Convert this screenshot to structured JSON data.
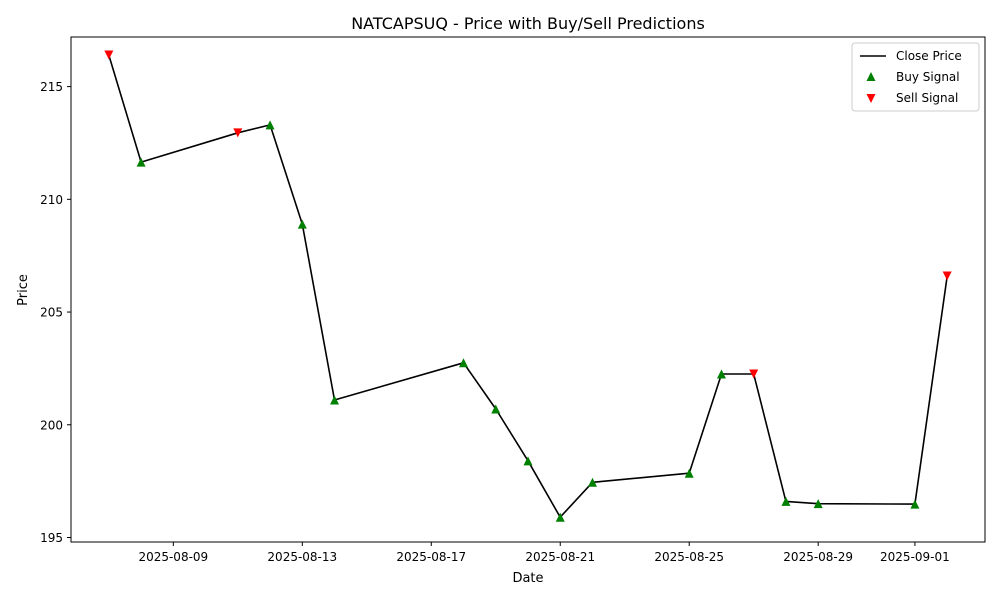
{
  "chart_data": {
    "type": "line",
    "title": "NATCAPSUQ - Price with Buy/Sell Predictions",
    "xlabel": "Date",
    "ylabel": "Price",
    "xlim": [
      "2025-08-05T19:50",
      "2025-09-03T04:10"
    ],
    "ylim": [
      194.8,
      217.2
    ],
    "x_ticks": [
      "2025-08-09",
      "2025-08-13",
      "2025-08-17",
      "2025-08-21",
      "2025-08-25",
      "2025-08-29",
      "2025-09-01"
    ],
    "y_ticks": [
      195,
      200,
      205,
      210,
      215
    ],
    "grid": false,
    "legend_position": "upper-right",
    "legend": [
      "Close Price",
      "Buy Signal",
      "Sell Signal"
    ],
    "colors": {
      "line": "#000000",
      "buy": "#008000",
      "sell": "#ff0000"
    },
    "series": [
      {
        "name": "Close Price",
        "x": [
          "2025-08-07",
          "2025-08-08",
          "2025-08-11",
          "2025-08-12",
          "2025-08-13",
          "2025-08-14",
          "2025-08-18",
          "2025-08-19",
          "2025-08-20",
          "2025-08-21",
          "2025-08-22",
          "2025-08-25",
          "2025-08-26",
          "2025-08-27",
          "2025-08-28",
          "2025-08-29",
          "2025-09-01",
          "2025-09-02"
        ],
        "y": [
          216.4,
          211.65,
          212.95,
          213.3,
          208.9,
          201.1,
          202.75,
          200.7,
          198.4,
          195.9,
          197.45,
          197.85,
          202.25,
          202.25,
          196.6,
          196.5,
          196.48,
          206.6
        ]
      },
      {
        "name": "Buy Signal",
        "x": [
          "2025-08-08",
          "2025-08-12",
          "2025-08-13",
          "2025-08-14",
          "2025-08-18",
          "2025-08-19",
          "2025-08-20",
          "2025-08-21",
          "2025-08-22",
          "2025-08-25",
          "2025-08-26",
          "2025-08-28",
          "2025-08-29",
          "2025-09-01"
        ],
        "y": [
          211.65,
          213.3,
          208.9,
          201.1,
          202.75,
          200.7,
          198.4,
          195.9,
          197.45,
          197.85,
          202.25,
          196.6,
          196.5,
          196.48
        ]
      },
      {
        "name": "Sell Signal",
        "x": [
          "2025-08-07",
          "2025-08-11",
          "2025-08-27",
          "2025-09-02"
        ],
        "y": [
          216.4,
          212.95,
          202.25,
          206.6
        ]
      }
    ]
  }
}
